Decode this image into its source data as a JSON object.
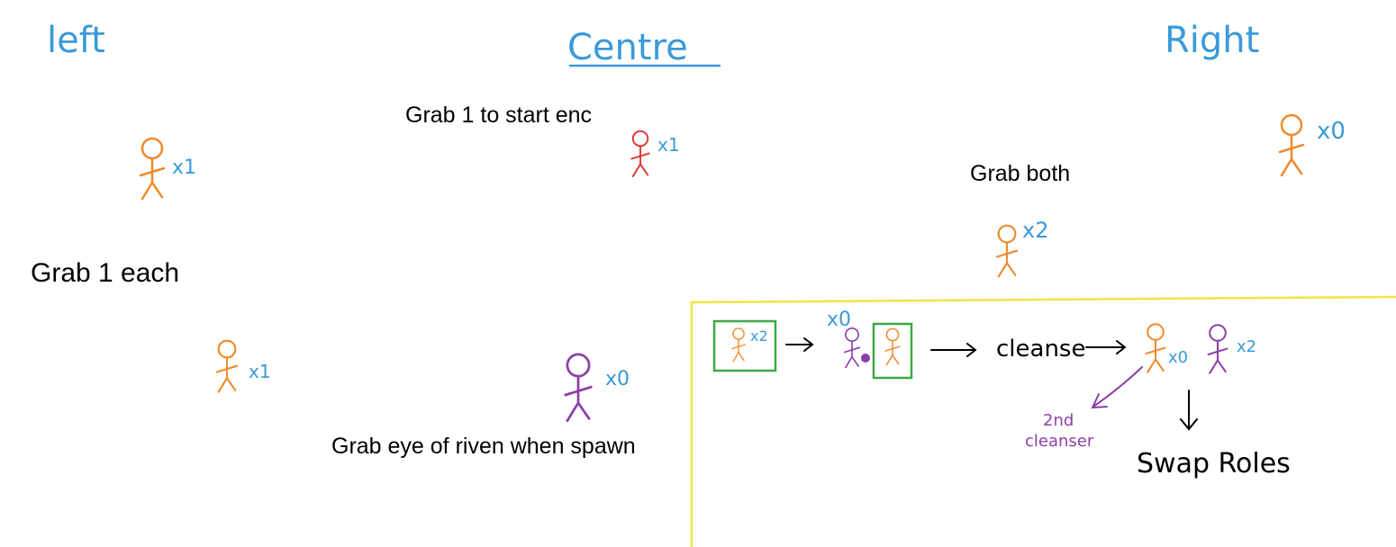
{
  "headers": {
    "left": "left",
    "centre": "Centre",
    "right": "Right"
  },
  "instructions": {
    "left": "Grab 1 each",
    "centre_start": "Grab 1 to start enc",
    "centre_eye": "Grab eye of riven when spawn",
    "right": "Grab both"
  },
  "counts": {
    "left_top": "x1",
    "left_bottom": "x1",
    "centre_red": "x1",
    "centre_purple": "x0",
    "right_top": "x0",
    "right_mid": "x2"
  },
  "sequence": {
    "step1_count": "x2",
    "step2_count": "x0",
    "cleanse": "cleanse",
    "result_orange_count": "x0",
    "result_purple_count": "x2",
    "second_cleanser_line1": "2nd",
    "second_cleanser_line2": "cleanser",
    "swap_roles": "Swap Roles"
  },
  "colors": {
    "header_blue": "#3a9ad9",
    "count_blue": "#3a9ad9",
    "orange": "#f08a2c",
    "red": "#e0322d",
    "purple": "#8b3fa6",
    "green_box": "#3da845",
    "yellow_border": "#f2e640",
    "ink": "#000000"
  }
}
